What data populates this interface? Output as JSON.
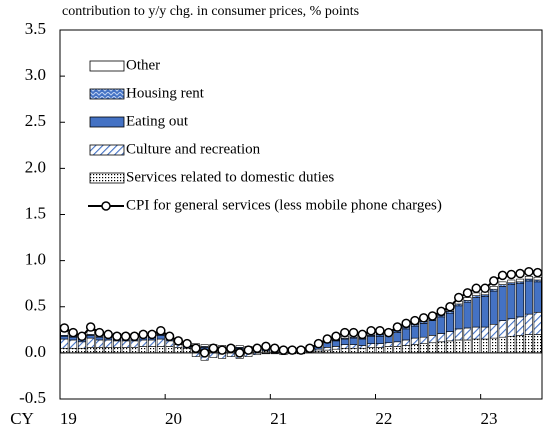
{
  "chart_data": {
    "type": "bar",
    "title": "contribution to y/y chg. in consumer prices, % points",
    "xlabel": "CY",
    "categories": [
      "19",
      null,
      null,
      null,
      null,
      null,
      null,
      null,
      null,
      null,
      null,
      null,
      "20",
      null,
      null,
      null,
      null,
      null,
      null,
      null,
      null,
      null,
      null,
      null,
      "21",
      null,
      null,
      null,
      null,
      null,
      null,
      null,
      null,
      null,
      null,
      null,
      "22",
      null,
      null,
      null,
      null,
      null,
      null,
      null,
      null,
      null,
      null,
      null,
      "23",
      null,
      null,
      null,
      null,
      null,
      null
    ],
    "ylim": [
      -0.5,
      3.5
    ],
    "yticks": [
      -0.5,
      {
        "value": 0,
        "label": "0.0"
      },
      0.5,
      {
        "value": 1,
        "label": "1.0"
      },
      1.5,
      {
        "value": 2,
        "label": "2.0"
      },
      2.5,
      {
        "value": 3,
        "label": "3.0"
      },
      3.5
    ],
    "stacked": true,
    "series": [
      {
        "name": "Services related to domestic duties",
        "color": "#000000",
        "pattern": "dots",
        "values": [
          0.05,
          0.05,
          0.05,
          0.06,
          0.06,
          0.06,
          0.06,
          0.06,
          0.06,
          0.07,
          0.07,
          0.07,
          0.07,
          0.06,
          0.05,
          0.04,
          0.03,
          0.03,
          0.03,
          0.03,
          0.03,
          0.02,
          0.02,
          0.02,
          0.01,
          0.01,
          0.01,
          0.01,
          0.02,
          0.02,
          0.03,
          0.04,
          0.05,
          0.05,
          0.05,
          0.06,
          0.06,
          0.07,
          0.07,
          0.08,
          0.09,
          0.1,
          0.11,
          0.12,
          0.13,
          0.14,
          0.14,
          0.15,
          0.15,
          0.16,
          0.17,
          0.18,
          0.19,
          0.2,
          0.2
        ]
      },
      {
        "name": "Culture and recreation",
        "color": "#4472c4",
        "pattern": "hatch",
        "values": [
          0.1,
          0.09,
          0.07,
          0.1,
          0.08,
          0.08,
          0.07,
          0.07,
          0.07,
          0.07,
          0.07,
          0.08,
          0.06,
          0.03,
          0.0,
          -0.04,
          -0.08,
          -0.05,
          -0.06,
          -0.04,
          -0.06,
          -0.04,
          -0.02,
          -0.01,
          -0.01,
          -0.02,
          -0.01,
          -0.01,
          0.0,
          0.02,
          0.03,
          0.03,
          0.04,
          0.04,
          0.03,
          0.04,
          0.04,
          0.04,
          0.05,
          0.06,
          0.07,
          0.07,
          0.08,
          0.09,
          0.1,
          0.12,
          0.13,
          0.13,
          0.13,
          0.15,
          0.18,
          0.19,
          0.2,
          0.22,
          0.24
        ]
      },
      {
        "name": "Eating out",
        "color": "#4472c4",
        "pattern": "solid",
        "values": [
          0.03,
          0.03,
          0.03,
          0.03,
          0.03,
          0.03,
          0.03,
          0.03,
          0.03,
          0.04,
          0.04,
          0.04,
          0.04,
          0.04,
          0.03,
          0.03,
          0.03,
          0.03,
          0.02,
          0.02,
          0.02,
          0.02,
          0.02,
          0.02,
          0.02,
          0.02,
          0.02,
          0.02,
          0.03,
          0.04,
          0.05,
          0.06,
          0.06,
          0.07,
          0.07,
          0.08,
          0.08,
          0.08,
          0.1,
          0.12,
          0.13,
          0.15,
          0.16,
          0.18,
          0.2,
          0.25,
          0.28,
          0.32,
          0.33,
          0.36,
          0.37,
          0.37,
          0.36,
          0.36,
          0.33
        ]
      },
      {
        "name": "Housing rent",
        "color": "#4472c4",
        "pattern": "cross",
        "values": [
          0.01,
          0.01,
          0.01,
          0.01,
          0.01,
          0.01,
          0.01,
          0.01,
          0.01,
          0.01,
          0.01,
          0.01,
          0.01,
          0.01,
          0.01,
          0.01,
          0.01,
          0.01,
          0.01,
          0.01,
          0.01,
          0.01,
          0.01,
          0.01,
          0.01,
          0.01,
          0.01,
          0.01,
          0.01,
          0.01,
          0.01,
          0.01,
          0.01,
          0.01,
          0.01,
          0.01,
          0.02,
          0.02,
          0.02,
          0.02,
          0.02,
          0.02,
          0.02,
          0.02,
          0.02,
          0.02,
          0.02,
          0.02,
          0.02,
          0.02,
          0.02,
          0.02,
          0.02,
          0.02,
          0.02
        ]
      },
      {
        "name": "Other",
        "color": "#ffffff",
        "pattern": "solid",
        "values": [
          0.04,
          0.04,
          0.04,
          0.04,
          0.04,
          0.04,
          0.04,
          0.04,
          0.04,
          0.04,
          0.04,
          0.04,
          0.02,
          0.02,
          0.02,
          0.02,
          0.02,
          0.02,
          0.02,
          0.02,
          0.02,
          0.02,
          0.02,
          0.02,
          0.02,
          0.02,
          0.02,
          0.02,
          0.02,
          0.02,
          0.02,
          0.02,
          0.02,
          0.02,
          0.02,
          0.02,
          0.03,
          0.03,
          0.03,
          0.03,
          0.03,
          0.03,
          0.03,
          0.03,
          0.03,
          0.03,
          0.03,
          0.03,
          0.03,
          0.03,
          0.03,
          0.03,
          0.03,
          0.03,
          0.03
        ]
      },
      {
        "name": "CPI for general services (less mobile phone charges)",
        "color": "#000000",
        "type": "line",
        "values": [
          0.27,
          0.22,
          0.18,
          0.28,
          0.22,
          0.2,
          0.18,
          0.18,
          0.18,
          0.2,
          0.2,
          0.24,
          0.18,
          0.13,
          0.1,
          0.05,
          0.0,
          0.05,
          0.03,
          0.05,
          0.0,
          0.03,
          0.05,
          0.07,
          0.05,
          0.03,
          0.03,
          0.03,
          0.05,
          0.1,
          0.15,
          0.18,
          0.22,
          0.22,
          0.2,
          0.24,
          0.24,
          0.22,
          0.28,
          0.32,
          0.35,
          0.38,
          0.4,
          0.45,
          0.5,
          0.6,
          0.65,
          0.7,
          0.7,
          0.78,
          0.84,
          0.85,
          0.86,
          0.88,
          0.87
        ]
      }
    ]
  }
}
